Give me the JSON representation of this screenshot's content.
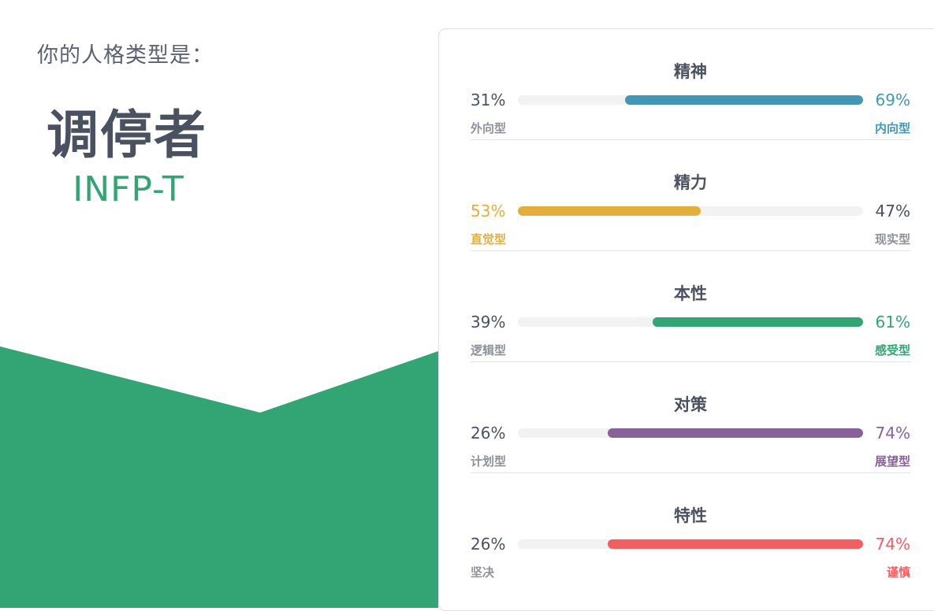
{
  "header": {
    "subtitle": "你的人格类型是：",
    "type_name": "调停者",
    "type_code": "INFP-T"
  },
  "colors": {
    "green": "#33a474",
    "blue": "#4298b4",
    "yellow": "#e4ae3a",
    "purple": "#88619a",
    "red": "#f25e62",
    "text": "#4a5160",
    "muted": "#8d929b"
  },
  "traits": [
    {
      "title": "精神",
      "left_pct": "31%",
      "right_pct": "69%",
      "left_label": "外向型",
      "right_label": "内向型",
      "dominant": "right",
      "value": 0.69,
      "color": "#4298b4"
    },
    {
      "title": "精力",
      "left_pct": "53%",
      "right_pct": "47%",
      "left_label": "直觉型",
      "right_label": "现实型",
      "dominant": "left",
      "value": 0.53,
      "color": "#e4ae3a"
    },
    {
      "title": "本性",
      "left_pct": "39%",
      "right_pct": "61%",
      "left_label": "逻辑型",
      "right_label": "感受型",
      "dominant": "right",
      "value": 0.61,
      "color": "#33a474"
    },
    {
      "title": "对策",
      "left_pct": "26%",
      "right_pct": "74%",
      "left_label": "计划型",
      "right_label": "展望型",
      "dominant": "right",
      "value": 0.74,
      "color": "#88619a"
    },
    {
      "title": "特性",
      "left_pct": "26%",
      "right_pct": "74%",
      "left_label": "坚决",
      "right_label": "谨慎",
      "dominant": "right",
      "value": 0.74,
      "color": "#f25e62"
    }
  ]
}
